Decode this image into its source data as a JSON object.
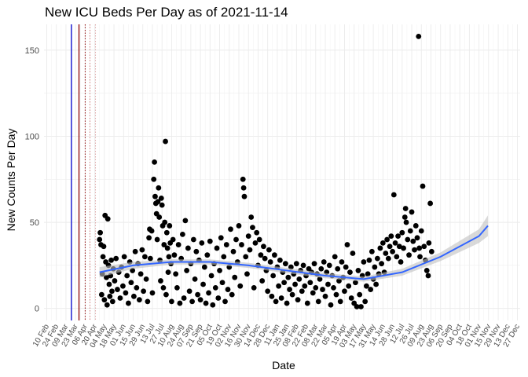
{
  "chart_data": {
    "type": "scatter",
    "title": "New ICU Beds Per Day as of 2021-11-14",
    "xlabel": "Date",
    "ylabel": "New Counts Per Day",
    "y_ticks": [
      0,
      50,
      100,
      150
    ],
    "ylim": [
      -7,
      165
    ],
    "xlim": [
      "2020-02-06",
      "2021-12-31"
    ],
    "x_tick_labels": [
      "10 Feb",
      "24 Feb",
      "09 Mar",
      "23 Mar",
      "06 Apr",
      "20 Apr",
      "04 May",
      "18 May",
      "01 Jun",
      "15 Jun",
      "29 Jun",
      "13 Jul",
      "27 Jul",
      "10 Aug",
      "24 Aug",
      "07 Sep",
      "21 Sep",
      "05 Oct",
      "19 Oct",
      "02 Nov",
      "16 Nov",
      "30 Nov",
      "14 Dec",
      "28 Dec",
      "11 Jan",
      "25 Jan",
      "08 Feb",
      "22 Feb",
      "08 Mar",
      "22 Mar",
      "05 Apr",
      "19 Apr",
      "03 May",
      "17 May",
      "31 May",
      "14 Jun",
      "28 Jun",
      "12 Jul",
      "26 Jul",
      "09 Aug",
      "23 Aug",
      "06 Sep",
      "20 Sep",
      "04 Oct",
      "18 Oct",
      "01 Nov",
      "15 Nov",
      "29 Nov",
      "13 Dec",
      "27 Dec"
    ],
    "x_tick_dates": [
      "2020-02-10",
      "2020-02-24",
      "2020-03-09",
      "2020-03-23",
      "2020-04-06",
      "2020-04-20",
      "2020-05-04",
      "2020-05-18",
      "2020-06-01",
      "2020-06-15",
      "2020-06-29",
      "2020-07-13",
      "2020-07-27",
      "2020-08-10",
      "2020-08-24",
      "2020-09-07",
      "2020-09-21",
      "2020-10-05",
      "2020-10-19",
      "2020-11-02",
      "2020-11-16",
      "2020-11-30",
      "2020-12-14",
      "2020-12-28",
      "2021-01-11",
      "2021-01-25",
      "2021-02-08",
      "2021-02-22",
      "2021-03-08",
      "2021-03-22",
      "2021-04-05",
      "2021-04-19",
      "2021-05-03",
      "2021-05-17",
      "2021-05-31",
      "2021-06-14",
      "2021-06-28",
      "2021-07-12",
      "2021-07-26",
      "2021-08-09",
      "2021-08-23",
      "2021-09-06",
      "2021-09-20",
      "2021-10-04",
      "2021-10-18",
      "2021-11-01",
      "2021-11-15",
      "2021-11-29",
      "2021-12-13",
      "2021-12-27"
    ],
    "grid": true,
    "vlines": [
      {
        "date": "2020-03-17",
        "color": "#0000cc",
        "style": "solid"
      },
      {
        "date": "2020-03-28",
        "color": "#8b0000",
        "style": "solid"
      },
      {
        "date": "2020-04-06",
        "color": "#8b0000",
        "style": "dotted"
      },
      {
        "date": "2020-04-13",
        "color": "#cc7777",
        "style": "dotted"
      },
      {
        "date": "2020-04-21",
        "color": "#ddaaaa",
        "style": "dotted"
      }
    ],
    "smooth": {
      "color": "#3366ff",
      "band_color": "#bfbfbf",
      "x": [
        "2020-04-27",
        "2020-06-15",
        "2020-08-10",
        "2020-10-05",
        "2020-11-30",
        "2021-01-25",
        "2021-03-22",
        "2021-05-17",
        "2021-07-12",
        "2021-09-06",
        "2021-11-01",
        "2021-11-14"
      ],
      "y": [
        21,
        25,
        27,
        27,
        25,
        22,
        19,
        17,
        21,
        30,
        42,
        48
      ],
      "band_half_width": [
        3,
        2,
        1.5,
        1.5,
        1.5,
        1.5,
        1.5,
        1.5,
        2,
        2.5,
        4,
        6
      ]
    },
    "points": [
      [
        "2020-04-27",
        40
      ],
      [
        "2020-04-28",
        44
      ],
      [
        "2020-04-29",
        37
      ],
      [
        "2020-04-30",
        8
      ],
      [
        "2020-05-01",
        20
      ],
      [
        "2020-05-02",
        30
      ],
      [
        "2020-05-03",
        36
      ],
      [
        "2020-05-04",
        5
      ],
      [
        "2020-05-05",
        54
      ],
      [
        "2020-05-06",
        27
      ],
      [
        "2020-05-07",
        18
      ],
      [
        "2020-05-08",
        2
      ],
      [
        "2020-05-09",
        52
      ],
      [
        "2020-05-10",
        25
      ],
      [
        "2020-05-11",
        14
      ],
      [
        "2020-05-12",
        7
      ],
      [
        "2020-05-13",
        19
      ],
      [
        "2020-05-14",
        28
      ],
      [
        "2020-05-15",
        10
      ],
      [
        "2020-05-16",
        4
      ],
      [
        "2020-05-17",
        23
      ],
      [
        "2020-05-19",
        16
      ],
      [
        "2020-05-21",
        29
      ],
      [
        "2020-05-23",
        11
      ],
      [
        "2020-05-25",
        21
      ],
      [
        "2020-05-27",
        6
      ],
      [
        "2020-05-29",
        24
      ],
      [
        "2020-05-31",
        13
      ],
      [
        "2020-06-02",
        30
      ],
      [
        "2020-06-04",
        9
      ],
      [
        "2020-06-06",
        19
      ],
      [
        "2020-06-08",
        3
      ],
      [
        "2020-06-10",
        27
      ],
      [
        "2020-06-12",
        15
      ],
      [
        "2020-06-14",
        22
      ],
      [
        "2020-06-16",
        7
      ],
      [
        "2020-06-18",
        33
      ],
      [
        "2020-06-20",
        12
      ],
      [
        "2020-06-22",
        26
      ],
      [
        "2020-06-24",
        5
      ],
      [
        "2020-06-26",
        20
      ],
      [
        "2020-06-28",
        34
      ],
      [
        "2020-06-30",
        10
      ],
      [
        "2020-07-02",
        30
      ],
      [
        "2020-07-04",
        17
      ],
      [
        "2020-07-06",
        4
      ],
      [
        "2020-07-08",
        41
      ],
      [
        "2020-07-09",
        46
      ],
      [
        "2020-07-10",
        29
      ],
      [
        "2020-07-12",
        45
      ],
      [
        "2020-07-13",
        9
      ],
      [
        "2020-07-15",
        75
      ],
      [
        "2020-07-16",
        85
      ],
      [
        "2020-07-17",
        65
      ],
      [
        "2020-07-18",
        61
      ],
      [
        "2020-07-19",
        55
      ],
      [
        "2020-07-20",
        40
      ],
      [
        "2020-07-21",
        62
      ],
      [
        "2020-07-22",
        70
      ],
      [
        "2020-07-23",
        53
      ],
      [
        "2020-07-24",
        28
      ],
      [
        "2020-07-25",
        16
      ],
      [
        "2020-07-26",
        64
      ],
      [
        "2020-07-27",
        60
      ],
      [
        "2020-07-28",
        48
      ],
      [
        "2020-07-29",
        12
      ],
      [
        "2020-07-30",
        37
      ],
      [
        "2020-07-31",
        50
      ],
      [
        "2020-08-01",
        97
      ],
      [
        "2020-08-02",
        8
      ],
      [
        "2020-08-03",
        44
      ],
      [
        "2020-08-04",
        35
      ],
      [
        "2020-08-05",
        21
      ],
      [
        "2020-08-06",
        30
      ],
      [
        "2020-08-07",
        48
      ],
      [
        "2020-08-08",
        38
      ],
      [
        "2020-08-09",
        26
      ],
      [
        "2020-08-10",
        4
      ],
      [
        "2020-08-12",
        40
      ],
      [
        "2020-08-14",
        31
      ],
      [
        "2020-08-16",
        20
      ],
      [
        "2020-08-18",
        12
      ],
      [
        "2020-08-20",
        37
      ],
      [
        "2020-08-22",
        3
      ],
      [
        "2020-08-24",
        29
      ],
      [
        "2020-08-26",
        43
      ],
      [
        "2020-08-28",
        6
      ],
      [
        "2020-08-30",
        51
      ],
      [
        "2020-09-01",
        22
      ],
      [
        "2020-09-03",
        35
      ],
      [
        "2020-09-05",
        10
      ],
      [
        "2020-09-07",
        26
      ],
      [
        "2020-09-09",
        4
      ],
      [
        "2020-09-11",
        40
      ],
      [
        "2020-09-13",
        17
      ],
      [
        "2020-09-15",
        33
      ],
      [
        "2020-09-17",
        8
      ],
      [
        "2020-09-19",
        28
      ],
      [
        "2020-09-21",
        5
      ],
      [
        "2020-09-23",
        38
      ],
      [
        "2020-09-25",
        14
      ],
      [
        "2020-09-27",
        24
      ],
      [
        "2020-09-29",
        3
      ],
      [
        "2020-10-01",
        31
      ],
      [
        "2020-10-03",
        9
      ],
      [
        "2020-10-05",
        39
      ],
      [
        "2020-10-07",
        19
      ],
      [
        "2020-10-09",
        2
      ],
      [
        "2020-10-11",
        26
      ],
      [
        "2020-10-13",
        12
      ],
      [
        "2020-10-15",
        35
      ],
      [
        "2020-10-17",
        6
      ],
      [
        "2020-10-19",
        22
      ],
      [
        "2020-10-21",
        41
      ],
      [
        "2020-10-23",
        15
      ],
      [
        "2020-10-25",
        30
      ],
      [
        "2020-10-27",
        4
      ],
      [
        "2020-10-29",
        37
      ],
      [
        "2020-10-31",
        11
      ],
      [
        "2020-11-02",
        24
      ],
      [
        "2020-11-04",
        46
      ],
      [
        "2020-11-06",
        8
      ],
      [
        "2020-11-08",
        33
      ],
      [
        "2020-11-10",
        18
      ],
      [
        "2020-11-12",
        40
      ],
      [
        "2020-11-14",
        27
      ],
      [
        "2020-11-16",
        48
      ],
      [
        "2020-11-18",
        13
      ],
      [
        "2020-11-20",
        37
      ],
      [
        "2020-11-22",
        75
      ],
      [
        "2020-11-23",
        70
      ],
      [
        "2020-11-24",
        65
      ],
      [
        "2020-11-26",
        30
      ],
      [
        "2020-11-28",
        20
      ],
      [
        "2020-11-30",
        42
      ],
      [
        "2020-12-02",
        34
      ],
      [
        "2020-12-04",
        53
      ],
      [
        "2020-12-06",
        47
      ],
      [
        "2020-12-08",
        12
      ],
      [
        "2020-12-10",
        38
      ],
      [
        "2020-12-12",
        44
      ],
      [
        "2020-12-14",
        25
      ],
      [
        "2020-12-16",
        40
      ],
      [
        "2020-12-18",
        31
      ],
      [
        "2020-12-20",
        16
      ],
      [
        "2020-12-22",
        36
      ],
      [
        "2020-12-24",
        29
      ],
      [
        "2020-12-26",
        22
      ],
      [
        "2020-12-28",
        10
      ],
      [
        "2020-12-30",
        34
      ],
      [
        "2021-01-01",
        27
      ],
      [
        "2021-01-03",
        7
      ],
      [
        "2021-01-05",
        19
      ],
      [
        "2021-01-07",
        31
      ],
      [
        "2021-01-09",
        4
      ],
      [
        "2021-01-11",
        24
      ],
      [
        "2021-01-13",
        13
      ],
      [
        "2021-01-15",
        28
      ],
      [
        "2021-01-17",
        6
      ],
      [
        "2021-01-19",
        21
      ],
      [
        "2021-01-21",
        15
      ],
      [
        "2021-01-23",
        26
      ],
      [
        "2021-01-25",
        3
      ],
      [
        "2021-01-27",
        18
      ],
      [
        "2021-01-29",
        11
      ],
      [
        "2021-01-31",
        24
      ],
      [
        "2021-02-02",
        8
      ],
      [
        "2021-02-04",
        20
      ],
      [
        "2021-02-06",
        14
      ],
      [
        "2021-02-08",
        26
      ],
      [
        "2021-02-10",
        5
      ],
      [
        "2021-02-12",
        17
      ],
      [
        "2021-02-14",
        22
      ],
      [
        "2021-02-16",
        10
      ],
      [
        "2021-02-18",
        25
      ],
      [
        "2021-02-20",
        13
      ],
      [
        "2021-02-22",
        19
      ],
      [
        "2021-02-24",
        3
      ],
      [
        "2021-02-26",
        23
      ],
      [
        "2021-02-28",
        15
      ],
      [
        "2021-03-02",
        21
      ],
      [
        "2021-03-04",
        9
      ],
      [
        "2021-03-06",
        26
      ],
      [
        "2021-03-08",
        12
      ],
      [
        "2021-03-10",
        20
      ],
      [
        "2021-03-12",
        4
      ],
      [
        "2021-03-14",
        17
      ],
      [
        "2021-03-16",
        23
      ],
      [
        "2021-03-18",
        11
      ],
      [
        "2021-03-20",
        27
      ],
      [
        "2021-03-22",
        7
      ],
      [
        "2021-03-24",
        21
      ],
      [
        "2021-03-26",
        14
      ],
      [
        "2021-03-28",
        25
      ],
      [
        "2021-03-30",
        2
      ],
      [
        "2021-04-01",
        19
      ],
      [
        "2021-04-03",
        12
      ],
      [
        "2021-04-05",
        30
      ],
      [
        "2021-04-07",
        8
      ],
      [
        "2021-04-09",
        23
      ],
      [
        "2021-04-11",
        16
      ],
      [
        "2021-04-13",
        4
      ],
      [
        "2021-04-15",
        27
      ],
      [
        "2021-04-17",
        18
      ],
      [
        "2021-04-19",
        10
      ],
      [
        "2021-04-21",
        24
      ],
      [
        "2021-04-23",
        37
      ],
      [
        "2021-04-25",
        13
      ],
      [
        "2021-04-27",
        21
      ],
      [
        "2021-04-29",
        6
      ],
      [
        "2021-05-01",
        32
      ],
      [
        "2021-05-03",
        3
      ],
      [
        "2021-05-05",
        15
      ],
      [
        "2021-05-07",
        1
      ],
      [
        "2021-05-09",
        22
      ],
      [
        "2021-05-11",
        8
      ],
      [
        "2021-05-13",
        1
      ],
      [
        "2021-05-15",
        19
      ],
      [
        "2021-05-17",
        27
      ],
      [
        "2021-05-19",
        4
      ],
      [
        "2021-05-21",
        13
      ],
      [
        "2021-05-23",
        20
      ],
      [
        "2021-05-25",
        28
      ],
      [
        "2021-05-27",
        11
      ],
      [
        "2021-05-29",
        33
      ],
      [
        "2021-05-31",
        17
      ],
      [
        "2021-06-02",
        24
      ],
      [
        "2021-06-04",
        14
      ],
      [
        "2021-06-06",
        29
      ],
      [
        "2021-06-08",
        20
      ],
      [
        "2021-06-10",
        35
      ],
      [
        "2021-06-12",
        26
      ],
      [
        "2021-06-14",
        38
      ],
      [
        "2021-06-16",
        21
      ],
      [
        "2021-06-18",
        32
      ],
      [
        "2021-06-20",
        40
      ],
      [
        "2021-06-22",
        29
      ],
      [
        "2021-06-24",
        36
      ],
      [
        "2021-06-26",
        42
      ],
      [
        "2021-06-28",
        33
      ],
      [
        "2021-06-30",
        66
      ],
      [
        "2021-07-02",
        38
      ],
      [
        "2021-07-04",
        30
      ],
      [
        "2021-07-06",
        42
      ],
      [
        "2021-07-08",
        36
      ],
      [
        "2021-07-10",
        27
      ],
      [
        "2021-07-12",
        44
      ],
      [
        "2021-07-14",
        35
      ],
      [
        "2021-07-16",
        53
      ],
      [
        "2021-07-17",
        58
      ],
      [
        "2021-07-18",
        50
      ],
      [
        "2021-07-20",
        40
      ],
      [
        "2021-07-22",
        31
      ],
      [
        "2021-07-24",
        45
      ],
      [
        "2021-07-26",
        56
      ],
      [
        "2021-07-28",
        39
      ],
      [
        "2021-07-30",
        34
      ],
      [
        "2021-08-01",
        48
      ],
      [
        "2021-08-03",
        41
      ],
      [
        "2021-08-05",
        158
      ],
      [
        "2021-08-06",
        35
      ],
      [
        "2021-08-07",
        30
      ],
      [
        "2021-08-09",
        45
      ],
      [
        "2021-08-11",
        71
      ],
      [
        "2021-08-13",
        36
      ],
      [
        "2021-08-15",
        28
      ],
      [
        "2021-08-17",
        22
      ],
      [
        "2021-08-19",
        19
      ],
      [
        "2021-08-20",
        38
      ],
      [
        "2021-08-22",
        61
      ],
      [
        "2021-08-24",
        33
      ]
    ]
  }
}
